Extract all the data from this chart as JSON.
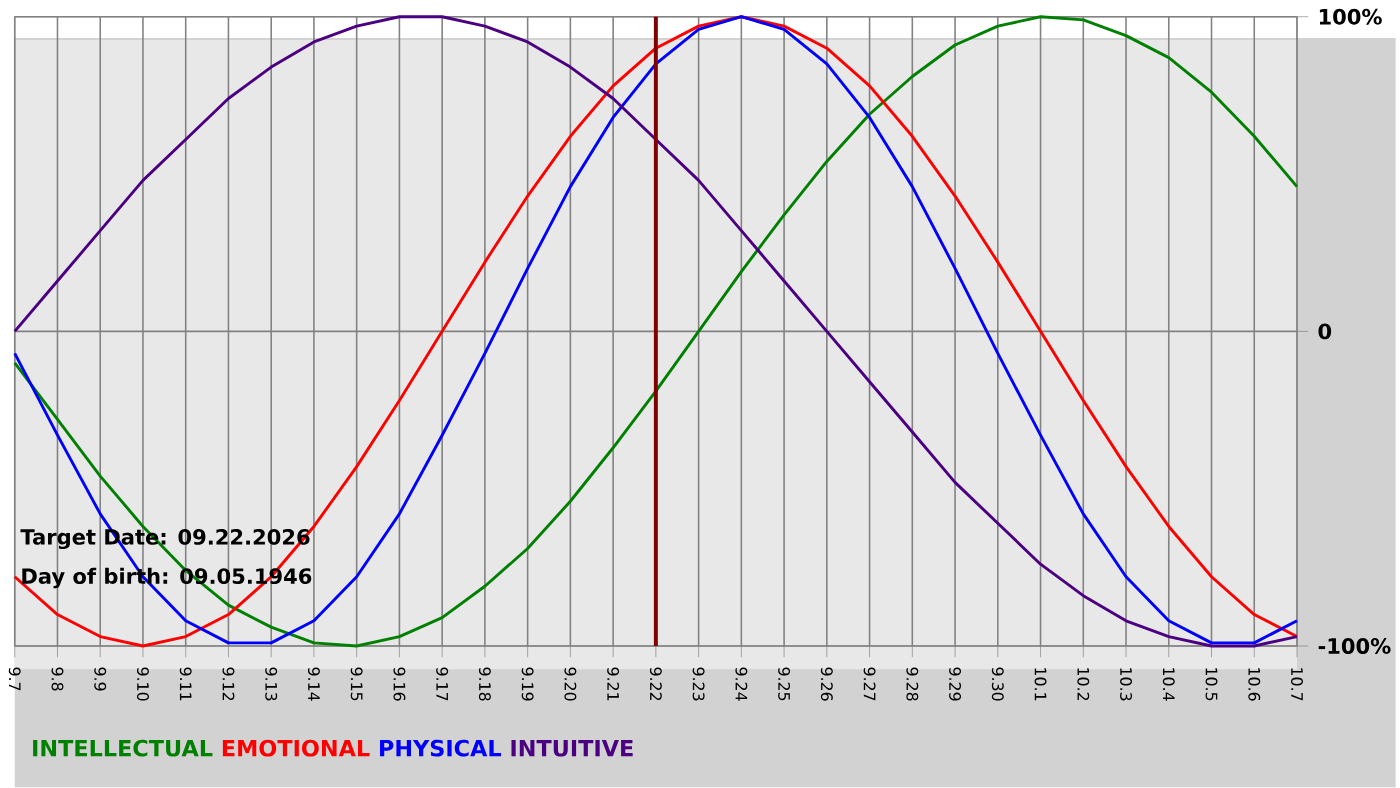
{
  "chart_data": {
    "type": "line",
    "categories": [
      "9.7",
      "9.8",
      "9.9",
      "9.10",
      "9.11",
      "9.12",
      "9.13",
      "9.14",
      "9.15",
      "9.16",
      "9.17",
      "9.18",
      "9.19",
      "9.20",
      "9.21",
      "9.22",
      "9.23",
      "9.24",
      "9.25",
      "9.26",
      "9.27",
      "9.28",
      "9.29",
      "9.30",
      "10.1",
      "10.2",
      "10.3",
      "10.4",
      "10.5",
      "10.6",
      "10.7"
    ],
    "series": [
      {
        "name": "INTELLECTUAL",
        "color": "#008000",
        "values": [
          -10,
          -28,
          -46,
          -62,
          -76,
          -87,
          -94,
          -99,
          -100,
          -97,
          -91,
          -81,
          -69,
          -54,
          -37,
          -19,
          0,
          19,
          37,
          54,
          69,
          81,
          91,
          97,
          100,
          99,
          94,
          87,
          76,
          62,
          46
        ]
      },
      {
        "name": "EMOTIONAL",
        "color": "#ff0000",
        "values": [
          -78,
          -90,
          -97,
          -100,
          -97,
          -90,
          -78,
          -62,
          -43,
          -22,
          0,
          22,
          43,
          62,
          78,
          90,
          97,
          100,
          97,
          90,
          78,
          62,
          43,
          22,
          0,
          -22,
          -43,
          -62,
          -78,
          -90,
          -97
        ]
      },
      {
        "name": "PHYSICAL",
        "color": "#0000ff",
        "values": [
          -7,
          -33,
          -58,
          -78,
          -92,
          -99,
          -99,
          -92,
          -78,
          -58,
          -33,
          -7,
          20,
          46,
          68,
          85,
          96,
          100,
          96,
          85,
          68,
          46,
          20,
          -7,
          -33,
          -58,
          -78,
          -92,
          -99,
          -99,
          -92
        ]
      },
      {
        "name": "INTUITIVE",
        "color": "#4b0082",
        "values": [
          0,
          16,
          32,
          48,
          61,
          74,
          84,
          92,
          97,
          100,
          100,
          97,
          92,
          84,
          74,
          61,
          48,
          32,
          16,
          0,
          -16,
          -32,
          -48,
          -61,
          -74,
          -84,
          -92,
          -97,
          -100,
          -100,
          -97
        ]
      }
    ],
    "ylim": [
      -100,
      100
    ],
    "yticks": [
      {
        "value": 100,
        "label": "100%"
      },
      0,
      {
        "value": -100,
        "label": "-100%"
      }
    ],
    "grid": true,
    "legend": "bottom",
    "marker": "none",
    "line_style": "solid",
    "ref_lines": [
      {
        "axis": "x",
        "value": "9.22",
        "color": "#800000"
      }
    ],
    "annotations": [
      "Target Date: 09.22.2026",
      "Day of birth: 09.05.1946"
    ]
  }
}
